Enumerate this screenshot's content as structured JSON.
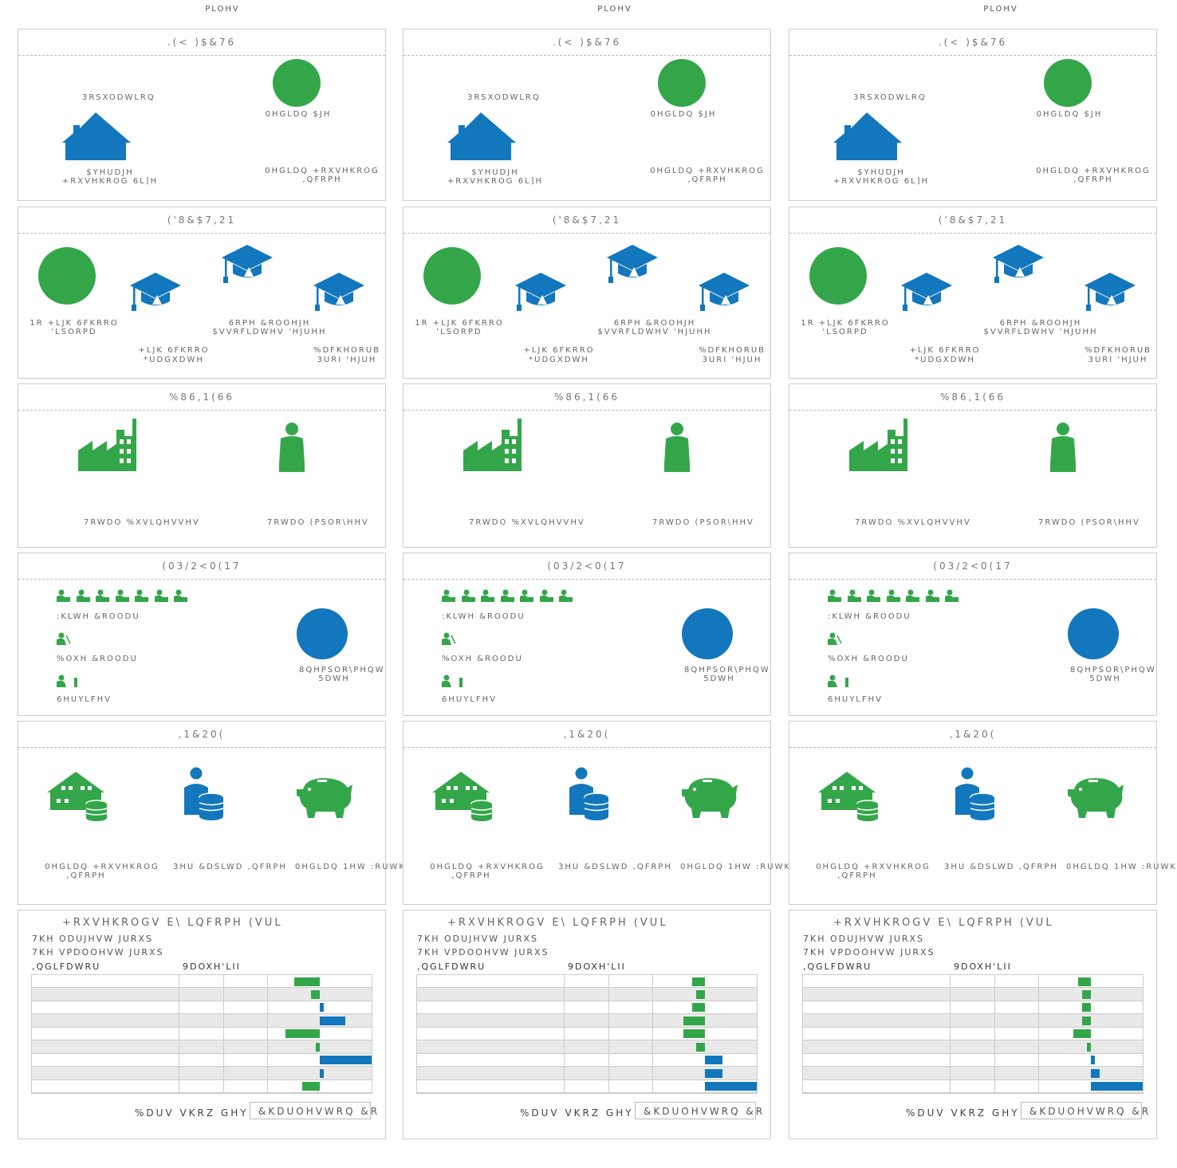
{
  "columns": [
    {
      "header": "PLOHV"
    },
    {
      "header": "PLOHV"
    },
    {
      "header": "PLOHV"
    }
  ],
  "colors": {
    "green": "#34a64a",
    "blue": "#1277bd"
  },
  "panels": {
    "key_facts": {
      "title": ".(< )$&76",
      "population": "3RSXODWLRQ",
      "median_age": "0HGLDQ $JH",
      "avg_household_size_1": "$YHUDJH",
      "avg_household_size_2": "+RXVHKROG 6L]H",
      "median_household_income_1": "0HGLDQ +RXVHKROG",
      "median_household_income_2": ",QFRPH"
    },
    "education": {
      "title": "('8&$7,21",
      "no_hs_1": "1R +LJK 6FKRRO",
      "no_hs_2": "'LSORPD",
      "hs_grad_1": "+LJK 6FKRRO",
      "hs_grad_2": "*UDGXDWH",
      "some_college_1": "6RPH &ROOHJH",
      "some_college_2": "$VVRFLDWHV 'HJUHH",
      "bachelor_1": "%DFKHORUB",
      "bachelor_2": "3URI 'HJUH"
    },
    "business": {
      "title": "%86,1(66",
      "total_businesses": "7RWDO %XVLQHVVHV",
      "total_employees": "7RWDO (PSOR\\HHV"
    },
    "employment": {
      "title": "(03/2<0(17",
      "white_collar": ":KLWH &ROODU",
      "blue_collar": "%OXH &ROODU",
      "services": "6HUYLFHV",
      "unemployment_1": "8QHPSOR\\PHQW",
      "unemployment_2": "5DWH"
    },
    "income": {
      "title": ",1&20(",
      "median_hh_income_1": "0HGLDQ +RXVHKROG",
      "median_hh_income_2": ",QFRPH",
      "per_capita_income": "3HU &DSLWD ,QFRPH",
      "median_net_worth": "0HGLDQ 1HW :RUWK"
    },
    "households_by_income": {
      "title": "+RXVHKROGV E\\ LQFRPH  (VUL",
      "largest_group": "7KH ODUJHVW JURXS",
      "smallest_group": "7KH VPDOOHVW JURXS",
      "indicator_header": ",QGLFDWRU",
      "value_diff_header": "9DOXH'LII",
      "bars_show_label": "%DUV VKRZ GHY",
      "dropdown_value": "&KDUOHVWRQ &R"
    }
  },
  "chart_data": [
    {
      "type": "bar",
      "title": "",
      "series": [
        {
          "values": [
            -6,
            -2,
            1,
            6,
            -8,
            -1,
            12,
            1,
            -4
          ]
        }
      ],
      "categories": [
        "",
        "",
        "",
        "",
        "",
        "",
        "",
        "",
        ""
      ]
    },
    {
      "type": "bar",
      "title": "",
      "series": [
        {
          "values": [
            -3,
            -2,
            -3,
            -5,
            -5,
            -2,
            4,
            4,
            12
          ]
        }
      ],
      "categories": [
        "",
        "",
        "",
        "",
        "",
        "",
        "",
        "",
        ""
      ]
    },
    {
      "type": "bar",
      "title": "",
      "series": [
        {
          "values": [
            -3,
            -2,
            -2,
            -2,
            -4,
            -1,
            1,
            2,
            12
          ]
        }
      ],
      "categories": [
        "",
        "",
        "",
        "",
        "",
        "",
        "",
        "",
        ""
      ]
    }
  ]
}
